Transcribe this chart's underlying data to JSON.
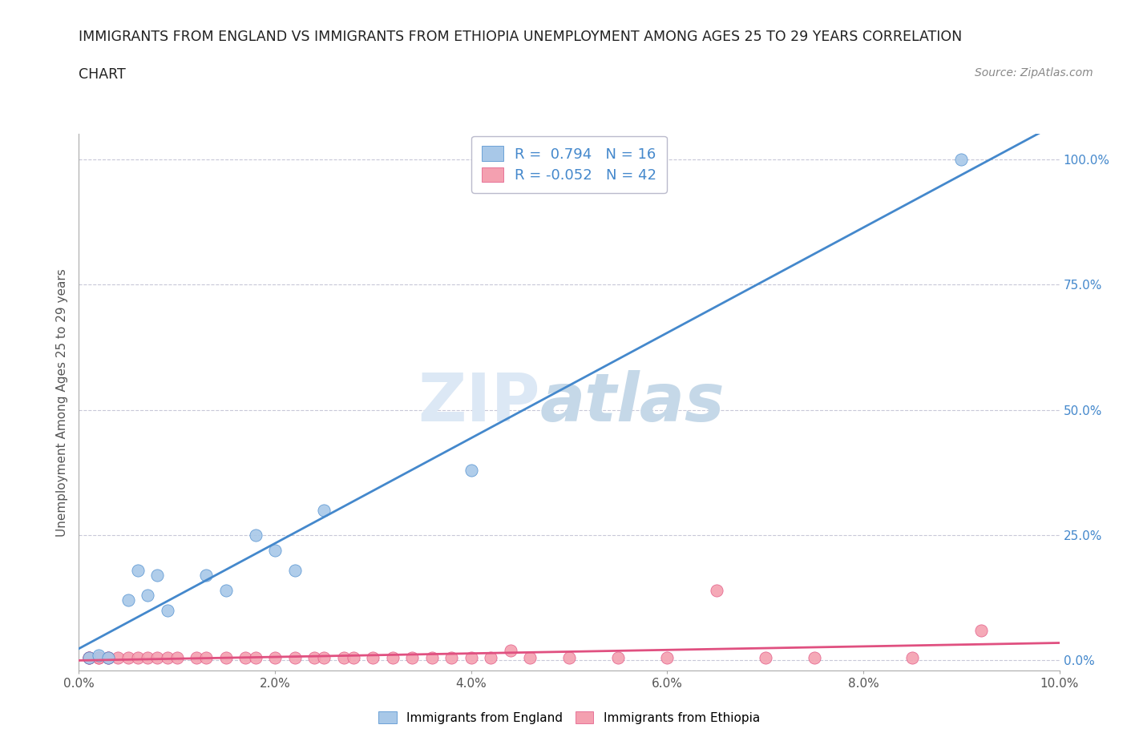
{
  "title_line1": "IMMIGRANTS FROM ENGLAND VS IMMIGRANTS FROM ETHIOPIA UNEMPLOYMENT AMONG AGES 25 TO 29 YEARS CORRELATION",
  "title_line2": "CHART",
  "source": "Source: ZipAtlas.com",
  "ylabel": "Unemployment Among Ages 25 to 29 years",
  "xlabel": "",
  "england_label": "Immigrants from England",
  "ethiopia_label": "Immigrants from Ethiopia",
  "england_R": 0.794,
  "england_N": 16,
  "ethiopia_R": -0.052,
  "ethiopia_N": 42,
  "england_color": "#a8c8e8",
  "ethiopia_color": "#f4a0b0",
  "england_line_color": "#4488cc",
  "ethiopia_line_color": "#e05080",
  "england_scatter_x": [
    0.001,
    0.002,
    0.003,
    0.005,
    0.006,
    0.007,
    0.008,
    0.009,
    0.013,
    0.015,
    0.018,
    0.02,
    0.022,
    0.025,
    0.04,
    0.09
  ],
  "england_scatter_y": [
    0.005,
    0.01,
    0.005,
    0.12,
    0.18,
    0.13,
    0.17,
    0.1,
    0.17,
    0.14,
    0.25,
    0.22,
    0.18,
    0.3,
    0.38,
    1.0
  ],
  "ethiopia_scatter_x": [
    0.001,
    0.001,
    0.001,
    0.002,
    0.002,
    0.003,
    0.003,
    0.004,
    0.005,
    0.006,
    0.007,
    0.008,
    0.009,
    0.01,
    0.012,
    0.013,
    0.015,
    0.017,
    0.018,
    0.02,
    0.022,
    0.024,
    0.025,
    0.027,
    0.028,
    0.03,
    0.032,
    0.034,
    0.036,
    0.038,
    0.04,
    0.042,
    0.044,
    0.046,
    0.05,
    0.055,
    0.06,
    0.065,
    0.07,
    0.075,
    0.085,
    0.092
  ],
  "ethiopia_scatter_y": [
    0.005,
    0.005,
    0.005,
    0.005,
    0.005,
    0.005,
    0.005,
    0.005,
    0.005,
    0.005,
    0.005,
    0.005,
    0.005,
    0.005,
    0.005,
    0.005,
    0.005,
    0.005,
    0.005,
    0.005,
    0.005,
    0.005,
    0.005,
    0.005,
    0.005,
    0.005,
    0.005,
    0.005,
    0.005,
    0.005,
    0.005,
    0.005,
    0.02,
    0.005,
    0.005,
    0.005,
    0.005,
    0.14,
    0.005,
    0.005,
    0.005,
    0.06
  ],
  "xlim": [
    0,
    0.1
  ],
  "ylim": [
    -0.02,
    1.05
  ],
  "xticks": [
    0.0,
    0.02,
    0.04,
    0.06,
    0.08,
    0.1
  ],
  "xtick_labels": [
    "0.0%",
    "2.0%",
    "4.0%",
    "6.0%",
    "8.0%",
    "10.0%"
  ],
  "yticks_right": [
    0.0,
    0.25,
    0.5,
    0.75,
    1.0
  ],
  "ytick_labels_right": [
    "0.0%",
    "25.0%",
    "50.0%",
    "75.0%",
    "100.0%"
  ],
  "watermark_zip": "ZIP",
  "watermark_atlas": "atlas",
  "background_color": "#ffffff",
  "grid_color": "#c8c8d8"
}
